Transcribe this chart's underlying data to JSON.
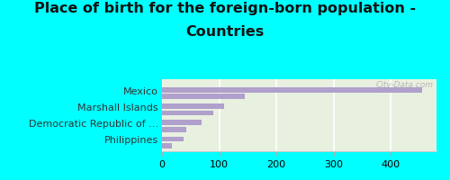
{
  "title_line1": "Place of birth for the foreign-born population -",
  "title_line2": "Countries",
  "bars": [
    {
      "label": "Mexico",
      "v1": 455,
      "v2": 145
    },
    {
      "label": "Marshall Islands",
      "v1": 108,
      "v2": 90
    },
    {
      "label": "Democratic Republic of ...",
      "v1": 70,
      "v2": 42
    },
    {
      "label": "Philippines",
      "v1": 38,
      "v2": 18
    }
  ],
  "bar_color": "#b0a0cc",
  "background_color": "#00ffff",
  "plot_bg_color_top": "#e8f0e0",
  "plot_bg_color_bottom": "#f5faf0",
  "xlim": [
    0,
    480
  ],
  "xticks": [
    0,
    100,
    200,
    300,
    400
  ],
  "watermark": "City-Data.com",
  "title_fontsize": 11.5,
  "tick_fontsize": 8,
  "label_fontsize": 8
}
